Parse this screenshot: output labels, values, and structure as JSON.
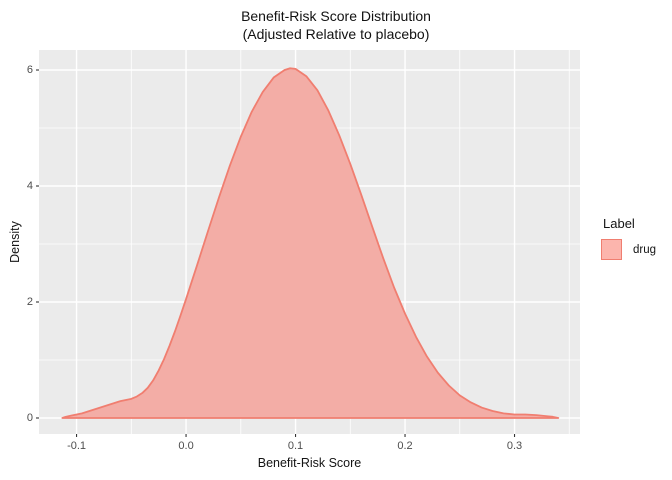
{
  "title": {
    "line1": "Benefit-Risk Score Distribution",
    "line2": "(Adjusted Relative to placebo)"
  },
  "legend": {
    "title": "Label",
    "items": [
      {
        "label": "drug"
      }
    ]
  },
  "colors": {
    "panel_bg": "#EBEBEB",
    "grid": "#FFFFFF",
    "curve_fill": "#F3ADA6",
    "curve_stroke": "#F07E70",
    "legend_key_fill": "#FCB5AD",
    "legend_key_border": "#F07E70",
    "axis_text": "#4D4D4D",
    "tick_mark": "#333333"
  },
  "chart_data": {
    "type": "area",
    "subtype": "density",
    "title": "Benefit-Risk Score Distribution",
    "subtitle": "(Adjusted Relative to placebo)",
    "xlabel": "Benefit-Risk Score",
    "ylabel": "Density",
    "legend_title": "Label",
    "legend_position": "right",
    "grid": true,
    "xlim": [
      -0.1343,
      0.3598
    ],
    "ylim": [
      -0.276,
      6.345
    ],
    "x_ticks": [
      -0.1,
      0.0,
      0.1,
      0.2,
      0.3
    ],
    "x_tick_labels": [
      "-0.1",
      "0.0",
      "0.1",
      "0.2",
      "0.3"
    ],
    "y_ticks": [
      0,
      2,
      4,
      6
    ],
    "y_tick_labels": [
      "0",
      "2",
      "4",
      "6"
    ],
    "x_minor": [
      -0.05,
      0.05,
      0.15,
      0.25,
      0.35
    ],
    "y_minor": [
      1,
      3,
      5
    ],
    "series": [
      {
        "name": "drug",
        "peak": {
          "x": 0.095,
          "density": 6.03
        },
        "points": [
          [
            -0.113,
            0.0
          ],
          [
            -0.11,
            0.02
          ],
          [
            -0.105,
            0.04
          ],
          [
            -0.1,
            0.06
          ],
          [
            -0.095,
            0.08
          ],
          [
            -0.09,
            0.11
          ],
          [
            -0.085,
            0.14
          ],
          [
            -0.08,
            0.17
          ],
          [
            -0.075,
            0.2
          ],
          [
            -0.07,
            0.23
          ],
          [
            -0.065,
            0.26
          ],
          [
            -0.06,
            0.29
          ],
          [
            -0.055,
            0.31
          ],
          [
            -0.05,
            0.33
          ],
          [
            -0.045,
            0.37
          ],
          [
            -0.04,
            0.43
          ],
          [
            -0.035,
            0.52
          ],
          [
            -0.03,
            0.65
          ],
          [
            -0.025,
            0.82
          ],
          [
            -0.02,
            1.02
          ],
          [
            -0.015,
            1.25
          ],
          [
            -0.01,
            1.5
          ],
          [
            -0.005,
            1.77
          ],
          [
            0.0,
            2.05
          ],
          [
            0.01,
            2.63
          ],
          [
            0.02,
            3.22
          ],
          [
            0.03,
            3.8
          ],
          [
            0.04,
            4.35
          ],
          [
            0.05,
            4.85
          ],
          [
            0.06,
            5.28
          ],
          [
            0.07,
            5.62
          ],
          [
            0.08,
            5.87
          ],
          [
            0.09,
            6.0
          ],
          [
            0.095,
            6.03
          ],
          [
            0.1,
            6.02
          ],
          [
            0.11,
            5.89
          ],
          [
            0.12,
            5.65
          ],
          [
            0.13,
            5.3
          ],
          [
            0.14,
            4.87
          ],
          [
            0.15,
            4.38
          ],
          [
            0.16,
            3.85
          ],
          [
            0.17,
            3.3
          ],
          [
            0.18,
            2.76
          ],
          [
            0.19,
            2.25
          ],
          [
            0.2,
            1.8
          ],
          [
            0.21,
            1.4
          ],
          [
            0.22,
            1.06
          ],
          [
            0.23,
            0.78
          ],
          [
            0.24,
            0.56
          ],
          [
            0.25,
            0.39
          ],
          [
            0.26,
            0.27
          ],
          [
            0.27,
            0.18
          ],
          [
            0.28,
            0.12
          ],
          [
            0.29,
            0.08
          ],
          [
            0.3,
            0.06
          ],
          [
            0.31,
            0.06
          ],
          [
            0.32,
            0.05
          ],
          [
            0.33,
            0.03
          ],
          [
            0.335,
            0.02
          ],
          [
            0.34,
            0.0
          ]
        ]
      }
    ]
  }
}
